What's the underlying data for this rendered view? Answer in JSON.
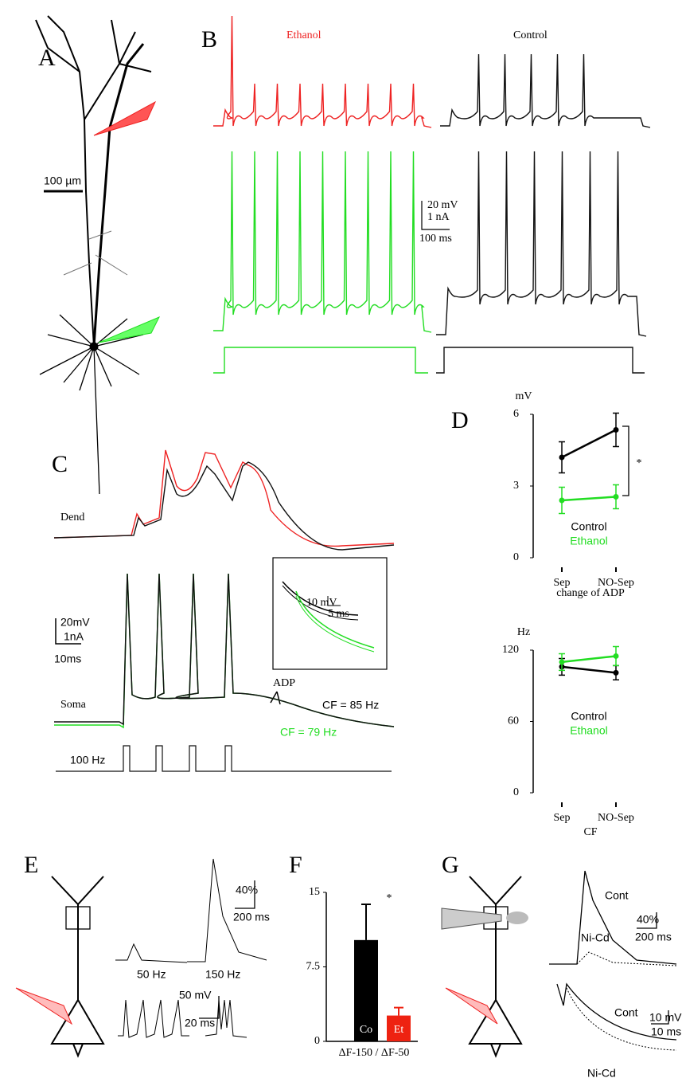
{
  "labels": [
    "A",
    "B",
    "C",
    "D",
    "E",
    "F",
    "G"
  ],
  "panel_a": {
    "scale": "100 µm"
  },
  "panel_b": {
    "conditions": [
      "Ethanol",
      "Control"
    ],
    "scale": [
      "20 mV",
      "1 nA",
      "100 ms"
    ]
  },
  "panel_c": {
    "traces": [
      "Dend",
      "Soma"
    ],
    "scale": [
      "20mV",
      "1nA",
      "10ms"
    ],
    "inset_scale": [
      "10 mV",
      "5 ms"
    ],
    "adp": "ADP",
    "cf_control": "CF = 85 Hz",
    "cf_ethanol": "CF = 79 Hz",
    "stimulus": "100 Hz"
  },
  "panel_e": {
    "scale_top": [
      "40%",
      "200 ms"
    ],
    "freqs": [
      "50 Hz",
      "150 Hz"
    ],
    "scale_bottom": [
      "50 mV",
      "20 ms"
    ]
  },
  "panel_g": {
    "scale_top": [
      "40%",
      "200 ms"
    ],
    "scale_bottom": [
      "10 mV",
      "10 ms"
    ],
    "top_traces": [
      "Cont",
      "Ni-Cd"
    ],
    "bottom_traces": [
      "Cont",
      "Ni-Cd"
    ]
  },
  "chart_data": [
    {
      "type": "line",
      "ylabel": "mV",
      "title": "change of ADP",
      "annotation": "*",
      "categories": [
        "Sep",
        "NO-Sep"
      ],
      "ylim": [
        0,
        6
      ],
      "yticks": [
        0,
        3,
        6
      ],
      "series": [
        {
          "name": "Control",
          "color": "#000000",
          "values": [
            4.2,
            5.35
          ],
          "errors": [
            0.65,
            0.7
          ]
        },
        {
          "name": "Ethanol",
          "color": "#22dd22",
          "values": [
            2.4,
            2.55
          ],
          "errors": [
            0.55,
            0.5
          ]
        }
      ]
    },
    {
      "type": "line",
      "ylabel": "Hz",
      "title": "CF",
      "categories": [
        "Sep",
        "NO-Sep"
      ],
      "ylim": [
        0,
        120
      ],
      "yticks": [
        0,
        60,
        120
      ],
      "series": [
        {
          "name": "Control",
          "color": "#000000",
          "values": [
            106,
            101
          ],
          "errors": [
            7,
            6
          ]
        },
        {
          "name": "Ethanol",
          "color": "#22dd22",
          "values": [
            110,
            115
          ],
          "errors": [
            7,
            8
          ]
        }
      ]
    },
    {
      "type": "bar",
      "annotation": "*",
      "xlabel": "ΔF-150 / ΔF-50",
      "categories": [
        "Co",
        "Et"
      ],
      "colors": [
        "#000000",
        "#ee2211"
      ],
      "values": [
        10.2,
        2.6
      ],
      "errors": [
        3.6,
        0.8
      ],
      "ylim": [
        0,
        15
      ],
      "yticks": [
        0,
        7.5,
        15
      ]
    }
  ]
}
